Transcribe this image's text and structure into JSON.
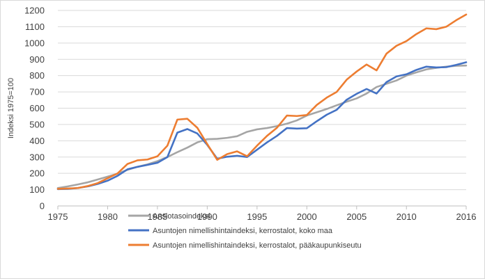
{
  "chart_data": {
    "type": "line",
    "title": "",
    "xlabel": "",
    "ylabel": "Indeksi 1975=100",
    "xlim": [
      1975,
      2016
    ],
    "ylim": [
      0,
      1200
    ],
    "x_ticks": [
      1975,
      1980,
      1985,
      1990,
      1995,
      2000,
      2005,
      2010,
      2016
    ],
    "y_ticks": [
      0,
      100,
      200,
      300,
      400,
      500,
      600,
      700,
      800,
      900,
      1000,
      1100,
      1200
    ],
    "grid": "horizontal",
    "legend_position": "bottom",
    "x": [
      1975,
      1976,
      1977,
      1978,
      1979,
      1980,
      1981,
      1982,
      1983,
      1984,
      1985,
      1986,
      1987,
      1988,
      1989,
      1990,
      1991,
      1992,
      1993,
      1994,
      1995,
      1996,
      1997,
      1998,
      1999,
      2000,
      2001,
      2002,
      2003,
      2004,
      2005,
      2006,
      2007,
      2008,
      2009,
      2010,
      2011,
      2012,
      2013,
      2014,
      2015,
      2016
    ],
    "series": [
      {
        "name": "Ansiotasoindeksi",
        "color": "#a5a5a5",
        "values": [
          110,
          120,
          132,
          145,
          162,
          180,
          198,
          222,
          240,
          255,
          275,
          300,
          330,
          358,
          390,
          410,
          412,
          418,
          428,
          455,
          470,
          478,
          490,
          505,
          525,
          555,
          575,
          595,
          618,
          640,
          660,
          690,
          730,
          750,
          770,
          800,
          820,
          838,
          848,
          855,
          860,
          862
        ]
      },
      {
        "name": "Asuntojen nimellishintaindeksi, kerrostalot, koko maa",
        "color": "#4472c4",
        "values": [
          103,
          105,
          110,
          120,
          135,
          155,
          185,
          225,
          240,
          252,
          265,
          300,
          450,
          472,
          445,
          375,
          290,
          302,
          308,
          300,
          345,
          390,
          430,
          478,
          475,
          477,
          520,
          560,
          590,
          652,
          688,
          718,
          690,
          760,
          795,
          808,
          835,
          855,
          850,
          852,
          866,
          882
        ]
      },
      {
        "name": "Asuntojen nimellishintaindeksi, kerrostalot, pääkaupunkiseutu",
        "color": "#ed7d31",
        "values": [
          105,
          107,
          110,
          122,
          140,
          170,
          200,
          258,
          280,
          285,
          305,
          370,
          530,
          535,
          480,
          380,
          283,
          318,
          335,
          305,
          370,
          430,
          480,
          555,
          552,
          558,
          620,
          665,
          700,
          775,
          825,
          868,
          832,
          935,
          983,
          1012,
          1055,
          1090,
          1085,
          1100,
          1140,
          1175
        ]
      }
    ]
  }
}
